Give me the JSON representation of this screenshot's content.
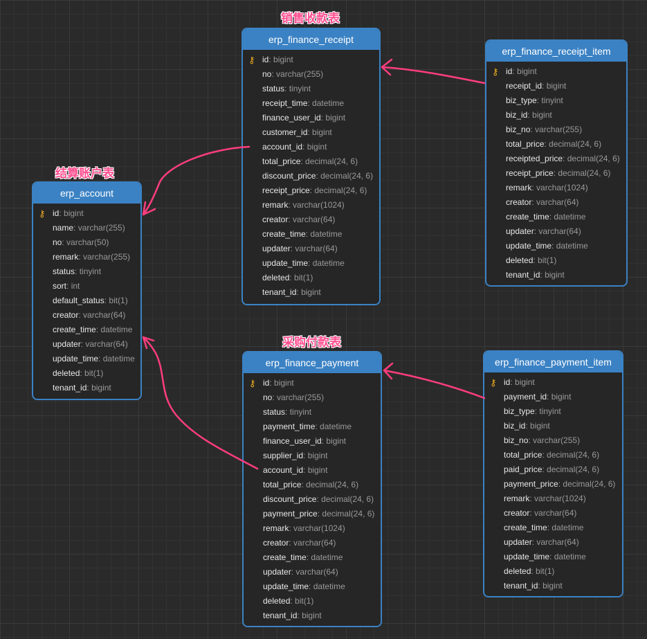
{
  "labels": {
    "receipt": "销售收款表",
    "account": "结算账户表",
    "payment": "采购付款表"
  },
  "colors": {
    "header": "#3b82c4",
    "arrow": "#ff3d7f",
    "key": "#f0b020"
  },
  "tables": [
    {
      "id": "erp_finance_receipt",
      "name": "erp_finance_receipt",
      "fields": [
        [
          "id",
          "bigint"
        ],
        [
          "no",
          "varchar(255)"
        ],
        [
          "status",
          "tinyint"
        ],
        [
          "receipt_time",
          "datetime"
        ],
        [
          "finance_user_id",
          "bigint"
        ],
        [
          "customer_id",
          "bigint"
        ],
        [
          "account_id",
          "bigint"
        ],
        [
          "total_price",
          "decimal(24, 6)"
        ],
        [
          "discount_price",
          "decimal(24, 6)"
        ],
        [
          "receipt_price",
          "decimal(24, 6)"
        ],
        [
          "remark",
          "varchar(1024)"
        ],
        [
          "creator",
          "varchar(64)"
        ],
        [
          "create_time",
          "datetime"
        ],
        [
          "updater",
          "varchar(64)"
        ],
        [
          "update_time",
          "datetime"
        ],
        [
          "deleted",
          "bit(1)"
        ],
        [
          "tenant_id",
          "bigint"
        ]
      ]
    },
    {
      "id": "erp_finance_receipt_item",
      "name": "erp_finance_receipt_item",
      "fields": [
        [
          "id",
          "bigint"
        ],
        [
          "receipt_id",
          "bigint"
        ],
        [
          "biz_type",
          "tinyint"
        ],
        [
          "biz_id",
          "bigint"
        ],
        [
          "biz_no",
          "varchar(255)"
        ],
        [
          "total_price",
          "decimal(24, 6)"
        ],
        [
          "receipted_price",
          "decimal(24, 6)"
        ],
        [
          "receipt_price",
          "decimal(24, 6)"
        ],
        [
          "remark",
          "varchar(1024)"
        ],
        [
          "creator",
          "varchar(64)"
        ],
        [
          "create_time",
          "datetime"
        ],
        [
          "updater",
          "varchar(64)"
        ],
        [
          "update_time",
          "datetime"
        ],
        [
          "deleted",
          "bit(1)"
        ],
        [
          "tenant_id",
          "bigint"
        ]
      ]
    },
    {
      "id": "erp_account",
      "name": "erp_account",
      "fields": [
        [
          "id",
          "bigint"
        ],
        [
          "name",
          "varchar(255)"
        ],
        [
          "no",
          "varchar(50)"
        ],
        [
          "remark",
          "varchar(255)"
        ],
        [
          "status",
          "tinyint"
        ],
        [
          "sort",
          "int"
        ],
        [
          "default_status",
          "bit(1)"
        ],
        [
          "creator",
          "varchar(64)"
        ],
        [
          "create_time",
          "datetime"
        ],
        [
          "updater",
          "varchar(64)"
        ],
        [
          "update_time",
          "datetime"
        ],
        [
          "deleted",
          "bit(1)"
        ],
        [
          "tenant_id",
          "bigint"
        ]
      ]
    },
    {
      "id": "erp_finance_payment",
      "name": "erp_finance_payment",
      "fields": [
        [
          "id",
          "bigint"
        ],
        [
          "no",
          "varchar(255)"
        ],
        [
          "status",
          "tinyint"
        ],
        [
          "payment_time",
          "datetime"
        ],
        [
          "finance_user_id",
          "bigint"
        ],
        [
          "supplier_id",
          "bigint"
        ],
        [
          "account_id",
          "bigint"
        ],
        [
          "total_price",
          "decimal(24, 6)"
        ],
        [
          "discount_price",
          "decimal(24, 6)"
        ],
        [
          "payment_price",
          "decimal(24, 6)"
        ],
        [
          "remark",
          "varchar(1024)"
        ],
        [
          "creator",
          "varchar(64)"
        ],
        [
          "create_time",
          "datetime"
        ],
        [
          "updater",
          "varchar(64)"
        ],
        [
          "update_time",
          "datetime"
        ],
        [
          "deleted",
          "bit(1)"
        ],
        [
          "tenant_id",
          "bigint"
        ]
      ]
    },
    {
      "id": "erp_finance_payment_item",
      "name": "erp_finance_payment_item",
      "fields": [
        [
          "id",
          "bigint"
        ],
        [
          "payment_id",
          "bigint"
        ],
        [
          "biz_type",
          "tinyint"
        ],
        [
          "biz_id",
          "bigint"
        ],
        [
          "biz_no",
          "varchar(255)"
        ],
        [
          "total_price",
          "decimal(24, 6)"
        ],
        [
          "paid_price",
          "decimal(24, 6)"
        ],
        [
          "payment_price",
          "decimal(24, 6)"
        ],
        [
          "remark",
          "varchar(1024)"
        ],
        [
          "creator",
          "varchar(64)"
        ],
        [
          "create_time",
          "datetime"
        ],
        [
          "updater",
          "varchar(64)"
        ],
        [
          "update_time",
          "datetime"
        ],
        [
          "deleted",
          "bit(1)"
        ],
        [
          "tenant_id",
          "bigint"
        ]
      ]
    }
  ],
  "relations": [
    {
      "from": "erp_finance_receipt_item.receipt_id",
      "to": "erp_finance_receipt.id"
    },
    {
      "from": "erp_finance_receipt.account_id",
      "to": "erp_account.id"
    },
    {
      "from": "erp_finance_payment.account_id",
      "to": "erp_account.id"
    },
    {
      "from": "erp_finance_payment_item.payment_id",
      "to": "erp_finance_payment.id"
    }
  ]
}
